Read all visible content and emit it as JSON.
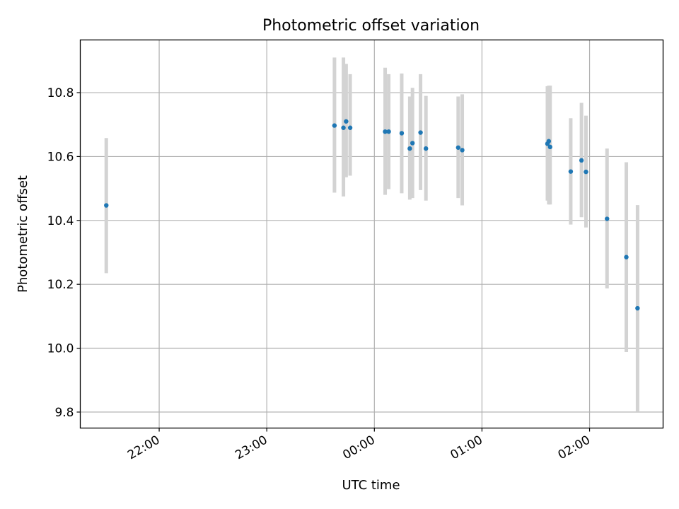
{
  "chart_data": {
    "type": "scatter",
    "title": "Photometric offset variation",
    "xlabel": "UTC time",
    "ylabel": "Photometric offset",
    "x_axis_type": "time",
    "x_ticks": [
      "22:00",
      "23:00",
      "00:00",
      "01:00",
      "02:00"
    ],
    "x_tick_times": [
      "2000-01-01T22:00",
      "2000-01-01T23:00",
      "2000-01-02T00:00",
      "2000-01-02T01:00",
      "2000-01-02T02:00"
    ],
    "y_ticks": [
      "9.8",
      "10.0",
      "10.2",
      "10.4",
      "10.6",
      "10.8"
    ],
    "y_tick_values": [
      9.8,
      10.0,
      10.2,
      10.4,
      10.6,
      10.8
    ],
    "xlim": [
      "2000-01-01T21:16",
      "2000-01-02T02:41"
    ],
    "ylim": [
      9.75,
      10.965
    ],
    "grid": true,
    "legend": "none",
    "colors": {
      "point": "#1f77b4",
      "errorbar": "#d3d3d3",
      "grid": "#b0b0b0"
    },
    "points": [
      {
        "t": "2000-01-01T21:30:30",
        "y": 10.447,
        "lo": 10.235,
        "hi": 10.658
      },
      {
        "t": "2000-01-01T23:37:45",
        "y": 10.697,
        "lo": 10.487,
        "hi": 10.91
      },
      {
        "t": "2000-01-01T23:42:45",
        "y": 10.69,
        "lo": 10.475,
        "hi": 10.91
      },
      {
        "t": "2000-01-01T23:44:15",
        "y": 10.71,
        "lo": 10.535,
        "hi": 10.89
      },
      {
        "t": "2000-01-01T23:46:30",
        "y": 10.69,
        "lo": 10.54,
        "hi": 10.858
      },
      {
        "t": "2000-01-02T00:06:00",
        "y": 10.678,
        "lo": 10.48,
        "hi": 10.878
      },
      {
        "t": "2000-01-02T00:08:00",
        "y": 10.678,
        "lo": 10.498,
        "hi": 10.858
      },
      {
        "t": "2000-01-02T00:15:15",
        "y": 10.673,
        "lo": 10.485,
        "hi": 10.86
      },
      {
        "t": "2000-01-02T00:19:45",
        "y": 10.625,
        "lo": 10.465,
        "hi": 10.788
      },
      {
        "t": "2000-01-02T00:21:15",
        "y": 10.642,
        "lo": 10.47,
        "hi": 10.815
      },
      {
        "t": "2000-01-02T00:25:45",
        "y": 10.675,
        "lo": 10.495,
        "hi": 10.858
      },
      {
        "t": "2000-01-02T00:28:45",
        "y": 10.625,
        "lo": 10.462,
        "hi": 10.79
      },
      {
        "t": "2000-01-02T00:46:45",
        "y": 10.628,
        "lo": 10.47,
        "hi": 10.788
      },
      {
        "t": "2000-01-02T00:49:00",
        "y": 10.62,
        "lo": 10.447,
        "hi": 10.795
      },
      {
        "t": "2000-01-02T01:36:30",
        "y": 10.64,
        "lo": 10.462,
        "hi": 10.82
      },
      {
        "t": "2000-01-02T01:37:15",
        "y": 10.648,
        "lo": 10.45,
        "hi": 10.822
      },
      {
        "t": "2000-01-02T01:38:00",
        "y": 10.63,
        "lo": 10.45,
        "hi": 10.822
      },
      {
        "t": "2000-01-02T01:49:30",
        "y": 10.553,
        "lo": 10.387,
        "hi": 10.72
      },
      {
        "t": "2000-01-02T01:55:30",
        "y": 10.588,
        "lo": 10.41,
        "hi": 10.768
      },
      {
        "t": "2000-01-02T01:58:00",
        "y": 10.552,
        "lo": 10.378,
        "hi": 10.728
      },
      {
        "t": "2000-01-02T02:09:45",
        "y": 10.405,
        "lo": 10.187,
        "hi": 10.625
      },
      {
        "t": "2000-01-02T02:20:30",
        "y": 10.285,
        "lo": 9.988,
        "hi": 10.582
      },
      {
        "t": "2000-01-02T02:26:45",
        "y": 10.125,
        "lo": 9.8,
        "hi": 10.448
      }
    ]
  }
}
